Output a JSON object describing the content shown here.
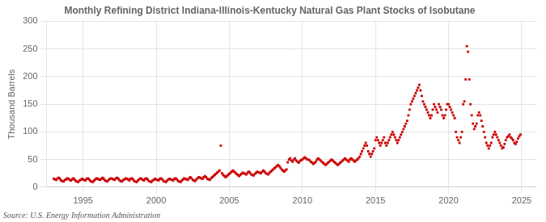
{
  "chart_data": {
    "type": "scatter",
    "title": "Monthly Refining District Indiana-Illinois-Kentucky Natural Gas Plant Stocks of Isobutane",
    "ylabel": "Thousand Barrels",
    "annotations": [
      "Source: U.S. Energy Information Administration"
    ],
    "color": "#cc0000",
    "marker": "square",
    "grid": true,
    "xlim": [
      1992.5,
      2026.0
    ],
    "ylim": [
      0,
      300
    ],
    "xticks": [
      1995,
      2000,
      2005,
      2010,
      2015,
      2020,
      2025
    ],
    "yticks": [
      0,
      50,
      100,
      150,
      200,
      250,
      300
    ],
    "x": [
      1993.0,
      1993.083,
      1993.167,
      1993.25,
      1993.333,
      1993.417,
      1993.5,
      1993.583,
      1993.667,
      1993.75,
      1993.833,
      1993.917,
      1994.0,
      1994.083,
      1994.167,
      1994.25,
      1994.333,
      1994.417,
      1994.5,
      1994.583,
      1994.667,
      1994.75,
      1994.833,
      1994.917,
      1995.0,
      1995.083,
      1995.167,
      1995.25,
      1995.333,
      1995.417,
      1995.5,
      1995.583,
      1995.667,
      1995.75,
      1995.833,
      1995.917,
      1996.0,
      1996.083,
      1996.167,
      1996.25,
      1996.333,
      1996.417,
      1996.5,
      1996.583,
      1996.667,
      1996.75,
      1996.833,
      1996.917,
      1997.0,
      1997.083,
      1997.167,
      1997.25,
      1997.333,
      1997.417,
      1997.5,
      1997.583,
      1997.667,
      1997.75,
      1997.833,
      1997.917,
      1998.0,
      1998.083,
      1998.167,
      1998.25,
      1998.333,
      1998.417,
      1998.5,
      1998.583,
      1998.667,
      1998.75,
      1998.833,
      1998.917,
      1999.0,
      1999.083,
      1999.167,
      1999.25,
      1999.333,
      1999.417,
      1999.5,
      1999.583,
      1999.667,
      1999.75,
      1999.833,
      1999.917,
      2000.0,
      2000.083,
      2000.167,
      2000.25,
      2000.333,
      2000.417,
      2000.5,
      2000.583,
      2000.667,
      2000.75,
      2000.833,
      2000.917,
      2001.0,
      2001.083,
      2001.167,
      2001.25,
      2001.333,
      2001.417,
      2001.5,
      2001.583,
      2001.667,
      2001.75,
      2001.833,
      2001.917,
      2002.0,
      2002.083,
      2002.167,
      2002.25,
      2002.333,
      2002.417,
      2002.5,
      2002.583,
      2002.667,
      2002.75,
      2002.833,
      2002.917,
      2003.0,
      2003.083,
      2003.167,
      2003.25,
      2003.333,
      2003.417,
      2003.5,
      2003.583,
      2003.667,
      2003.75,
      2003.833,
      2003.917,
      2004.0,
      2004.083,
      2004.167,
      2004.25,
      2004.333,
      2004.417,
      2004.5,
      2004.583,
      2004.667,
      2004.75,
      2004.833,
      2004.917,
      2005.0,
      2005.083,
      2005.167,
      2005.25,
      2005.333,
      2005.417,
      2005.5,
      2005.583,
      2005.667,
      2005.75,
      2005.833,
      2005.917,
      2006.0,
      2006.083,
      2006.167,
      2006.25,
      2006.333,
      2006.417,
      2006.5,
      2006.583,
      2006.667,
      2006.75,
      2006.833,
      2006.917,
      2007.0,
      2007.083,
      2007.167,
      2007.25,
      2007.333,
      2007.417,
      2007.5,
      2007.583,
      2007.667,
      2007.75,
      2007.833,
      2007.917,
      2008.0,
      2008.083,
      2008.167,
      2008.25,
      2008.333,
      2008.417,
      2008.5,
      2008.583,
      2008.667,
      2008.75,
      2008.833,
      2008.917,
      2009.0,
      2009.083,
      2009.167,
      2009.25,
      2009.333,
      2009.417,
      2009.5,
      2009.583,
      2009.667,
      2009.75,
      2009.833,
      2009.917,
      2010.0,
      2010.083,
      2010.167,
      2010.25,
      2010.333,
      2010.417,
      2010.5,
      2010.583,
      2010.667,
      2010.75,
      2010.833,
      2010.917,
      2011.0,
      2011.083,
      2011.167,
      2011.25,
      2011.333,
      2011.417,
      2011.5,
      2011.583,
      2011.667,
      2011.75,
      2011.833,
      2011.917,
      2012.0,
      2012.083,
      2012.167,
      2012.25,
      2012.333,
      2012.417,
      2012.5,
      2012.583,
      2012.667,
      2012.75,
      2012.833,
      2012.917,
      2013.0,
      2013.083,
      2013.167,
      2013.25,
      2013.333,
      2013.417,
      2013.5,
      2013.583,
      2013.667,
      2013.75,
      2013.833,
      2013.917,
      2014.0,
      2014.083,
      2014.167,
      2014.25,
      2014.333,
      2014.417,
      2014.5,
      2014.583,
      2014.667,
      2014.75,
      2014.833,
      2014.917,
      2015.0,
      2015.083,
      2015.167,
      2015.25,
      2015.333,
      2015.417,
      2015.5,
      2015.583,
      2015.667,
      2015.75,
      2015.833,
      2015.917,
      2016.0,
      2016.083,
      2016.167,
      2016.25,
      2016.333,
      2016.417,
      2016.5,
      2016.583,
      2016.667,
      2016.75,
      2016.833,
      2016.917,
      2017.0,
      2017.083,
      2017.167,
      2017.25,
      2017.333,
      2017.417,
      2017.5,
      2017.583,
      2017.667,
      2017.75,
      2017.833,
      2017.917,
      2018.0,
      2018.083,
      2018.167,
      2018.25,
      2018.333,
      2018.417,
      2018.5,
      2018.583,
      2018.667,
      2018.75,
      2018.833,
      2018.917,
      2019.0,
      2019.083,
      2019.167,
      2019.25,
      2019.333,
      2019.417,
      2019.5,
      2019.583,
      2019.667,
      2019.75,
      2019.833,
      2019.917,
      2020.0,
      2020.083,
      2020.167,
      2020.25,
      2020.333,
      2020.417,
      2020.5,
      2020.583,
      2020.667,
      2020.75,
      2020.833,
      2020.917,
      2021.0,
      2021.083,
      2021.167,
      2021.25,
      2021.333,
      2021.417,
      2021.5,
      2021.583,
      2021.667,
      2021.75,
      2021.833,
      2021.917,
      2022.0,
      2022.083,
      2022.167,
      2022.25,
      2022.333,
      2022.417,
      2022.5,
      2022.583,
      2022.667,
      2022.75,
      2022.833,
      2022.917,
      2023.0,
      2023.083,
      2023.167,
      2023.25,
      2023.333,
      2023.417,
      2023.5,
      2023.583,
      2023.667,
      2023.75,
      2023.833,
      2023.917,
      2024.0,
      2024.083,
      2024.167,
      2024.25,
      2024.333,
      2024.417,
      2024.5,
      2024.583,
      2024.667,
      2024.75,
      2024.833,
      2024.917
    ],
    "values": [
      15,
      14,
      13,
      16,
      17,
      15,
      12,
      11,
      10,
      13,
      14,
      16,
      15,
      13,
      12,
      14,
      16,
      14,
      11,
      10,
      9,
      12,
      13,
      15,
      14,
      13,
      12,
      15,
      16,
      14,
      11,
      10,
      9,
      12,
      14,
      16,
      15,
      14,
      13,
      15,
      17,
      15,
      12,
      11,
      10,
      13,
      15,
      16,
      15,
      14,
      13,
      16,
      17,
      15,
      12,
      11,
      10,
      13,
      14,
      16,
      15,
      14,
      12,
      15,
      16,
      14,
      11,
      10,
      9,
      12,
      14,
      16,
      15,
      13,
      12,
      15,
      16,
      14,
      11,
      10,
      9,
      12,
      13,
      15,
      14,
      13,
      12,
      15,
      16,
      14,
      11,
      10,
      9,
      12,
      14,
      15,
      14,
      13,
      12,
      15,
      16,
      14,
      11,
      10,
      9,
      12,
      14,
      16,
      15,
      14,
      13,
      16,
      18,
      16,
      13,
      12,
      11,
      14,
      16,
      18,
      17,
      16,
      15,
      18,
      20,
      18,
      15,
      14,
      13,
      16,
      18,
      20,
      22,
      24,
      26,
      28,
      30,
      75,
      25,
      22,
      20,
      18,
      20,
      22,
      24,
      26,
      28,
      30,
      28,
      26,
      24,
      22,
      20,
      22,
      24,
      26,
      25,
      24,
      23,
      26,
      28,
      26,
      23,
      22,
      21,
      24,
      26,
      28,
      27,
      26,
      25,
      28,
      30,
      28,
      25,
      24,
      23,
      26,
      28,
      30,
      32,
      34,
      36,
      38,
      40,
      38,
      35,
      32,
      30,
      28,
      30,
      32,
      45,
      50,
      52,
      48,
      46,
      50,
      52,
      48,
      46,
      44,
      47,
      49,
      50,
      52,
      54,
      52,
      50,
      50,
      48,
      46,
      44,
      42,
      44,
      46,
      50,
      52,
      50,
      48,
      46,
      44,
      42,
      40,
      42,
      44,
      46,
      48,
      50,
      48,
      46,
      44,
      42,
      40,
      42,
      44,
      46,
      48,
      50,
      52,
      50,
      48,
      46,
      50,
      52,
      50,
      48,
      46,
      48,
      50,
      52,
      55,
      60,
      65,
      70,
      75,
      80,
      75,
      65,
      60,
      55,
      60,
      65,
      70,
      85,
      90,
      85,
      80,
      75,
      80,
      85,
      90,
      80,
      75,
      80,
      85,
      90,
      95,
      100,
      95,
      90,
      85,
      80,
      85,
      90,
      95,
      100,
      105,
      110,
      115,
      120,
      130,
      140,
      150,
      155,
      160,
      165,
      170,
      175,
      180,
      185,
      175,
      165,
      155,
      150,
      145,
      140,
      135,
      130,
      125,
      130,
      140,
      150,
      145,
      140,
      135,
      150,
      145,
      140,
      130,
      125,
      130,
      140,
      150,
      150,
      145,
      140,
      135,
      130,
      125,
      100,
      90,
      85,
      80,
      90,
      100,
      150,
      155,
      195,
      255,
      245,
      195,
      150,
      130,
      115,
      105,
      110,
      115,
      130,
      135,
      130,
      120,
      110,
      100,
      90,
      80,
      75,
      70,
      75,
      80,
      90,
      95,
      100,
      95,
      90,
      85,
      80,
      75,
      70,
      72,
      78,
      85,
      90,
      92,
      95,
      90,
      88,
      85,
      80,
      78,
      82,
      88,
      92,
      95
    ]
  }
}
